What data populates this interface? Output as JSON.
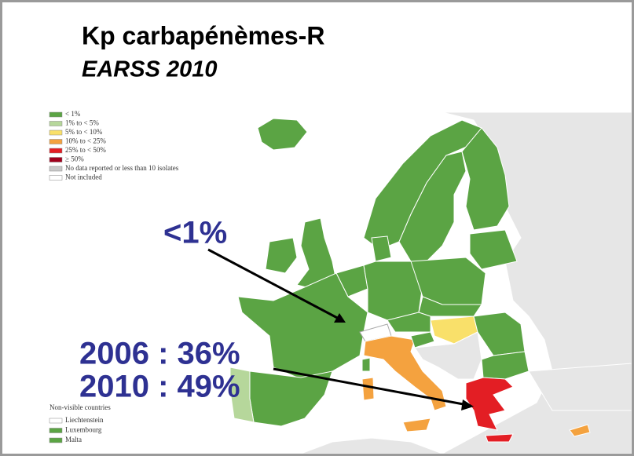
{
  "header": {
    "title": "Kp carbapénèmes-R",
    "subtitle": "EARSS 2010"
  },
  "legend": [
    {
      "label": "< 1%",
      "color": "#5ba444"
    },
    {
      "label": "1% to < 5%",
      "color": "#b6d79b"
    },
    {
      "label": "5% to < 10%",
      "color": "#f9e06a"
    },
    {
      "label": "10% to < 25%",
      "color": "#f4a23f"
    },
    {
      "label": "25% to < 50%",
      "color": "#e31e24"
    },
    {
      "label": "≥ 50%",
      "color": "#a0001c"
    },
    {
      "label": "No data reported or less than 10 isolates",
      "color": "#c9c9c9"
    },
    {
      "label": "Not included",
      "color": "#ffffff"
    }
  ],
  "non_visible": {
    "title": "Non-visible countries",
    "items": [
      {
        "label": "Liechtenstein",
        "color": "#ffffff"
      },
      {
        "label": "Luxembourg",
        "color": "#5ba444"
      },
      {
        "label": "Malta",
        "color": "#5ba444"
      }
    ]
  },
  "annotations": [
    "<1%",
    "2006 : 36%",
    "2010 : 49%"
  ]
}
